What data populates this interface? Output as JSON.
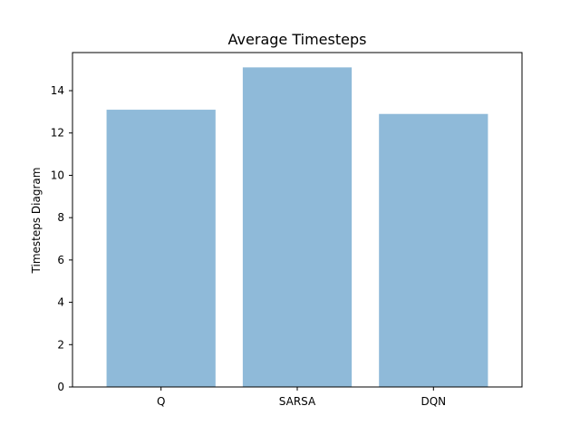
{
  "chart_data": {
    "type": "bar",
    "title": "Average Timesteps",
    "xlabel": "",
    "ylabel": "Timesteps Diagram",
    "categories": [
      "Q",
      "SARSA",
      "DQN"
    ],
    "values": [
      13.1,
      15.1,
      12.9
    ],
    "ylim": [
      0,
      15.8
    ],
    "yticks": [
      0,
      2,
      4,
      6,
      8,
      10,
      12,
      14
    ],
    "grid": false,
    "legend": "none",
    "bar_color": "#8fbad9"
  }
}
